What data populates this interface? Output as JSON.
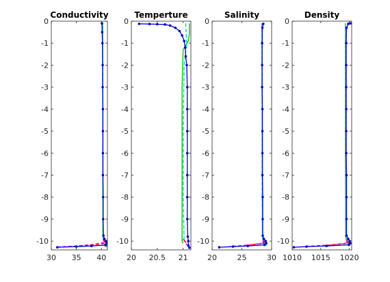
{
  "chart_data": [
    {
      "type": "line",
      "title": "Conductivity",
      "xlim": [
        30,
        41.2
      ],
      "ylim": [
        -10.4,
        0
      ],
      "xticks": [
        30,
        35,
        40
      ],
      "xtick_labels": [
        "30",
        "35",
        "40"
      ],
      "yticks": [
        0,
        -1,
        -2,
        -3,
        -4,
        -5,
        -6,
        -7,
        -8,
        -9,
        -10
      ],
      "ytick_labels": [
        "0",
        "-1",
        "-2",
        "-3",
        "-4",
        "-5",
        "-6",
        "-7",
        "-8",
        "-9",
        "-10"
      ],
      "grid": false,
      "series": [
        {
          "color": "#00cc00",
          "style": "solid",
          "markers": false,
          "points": [
            [
              40.25,
              -0.05
            ],
            [
              40.25,
              -2
            ],
            [
              40.3,
              -5
            ],
            [
              40.3,
              -9.8
            ],
            [
              40.4,
              -9.9
            ],
            [
              41.0,
              -10.0
            ],
            [
              41.1,
              -10.2
            ],
            [
              40.9,
              -10.28
            ]
          ]
        },
        {
          "color": "#00cccc",
          "style": "dashed",
          "markers": false,
          "points": [
            [
              40.2,
              -0.1
            ],
            [
              40.25,
              -3
            ],
            [
              40.3,
              -7
            ],
            [
              40.35,
              -9.85
            ],
            [
              40.7,
              -10.0
            ],
            [
              41.0,
              -10.1
            ],
            [
              40.6,
              -10.22
            ]
          ]
        },
        {
          "color": "#ff00ff",
          "style": "dashed",
          "markers": false,
          "points": [
            [
              40.3,
              -9.9
            ],
            [
              40.8,
              -10.05
            ],
            [
              38.5,
              -10.15
            ],
            [
              35.0,
              -10.22
            ],
            [
              31.5,
              -10.26
            ]
          ]
        },
        {
          "color": "#ff0000",
          "style": "dashed",
          "markers": false,
          "points": [
            [
              40.35,
              -9.95
            ],
            [
              40.9,
              -10.1
            ],
            [
              38.0,
              -10.18
            ],
            [
              34.0,
              -10.24
            ]
          ]
        },
        {
          "color": "#0000cc",
          "style": "solid",
          "markers": true,
          "points": [
            [
              40.1,
              -0.1
            ],
            [
              40.15,
              -0.5
            ],
            [
              40.2,
              -1
            ],
            [
              40.25,
              -2
            ],
            [
              40.25,
              -3
            ],
            [
              40.3,
              -4
            ],
            [
              40.3,
              -5
            ],
            [
              40.3,
              -6
            ],
            [
              40.3,
              -7
            ],
            [
              40.35,
              -8
            ],
            [
              40.35,
              -9
            ],
            [
              40.4,
              -9.75
            ],
            [
              40.6,
              -9.9
            ],
            [
              40.95,
              -10.0
            ],
            [
              41.05,
              -10.1
            ],
            [
              40.8,
              -10.18
            ],
            [
              38.0,
              -10.22
            ],
            [
              35.0,
              -10.25
            ],
            [
              31.2,
              -10.28
            ]
          ]
        }
      ]
    },
    {
      "type": "line",
      "title": "Temperture",
      "xlim": [
        20,
        21.15
      ],
      "ylim": [
        -10.4,
        0
      ],
      "xticks": [
        20,
        20.5,
        21
      ],
      "xtick_labels": [
        "20",
        "20.5",
        "21"
      ],
      "yticks": [
        0,
        -1,
        -2,
        -3,
        -4,
        -5,
        -6,
        -7,
        -8,
        -9,
        -10
      ],
      "ytick_labels": [
        "0",
        "-1",
        "-2",
        "-3",
        "-4",
        "-5",
        "-6",
        "-7",
        "-8",
        "-9",
        "-10"
      ],
      "grid": false,
      "series": [
        {
          "color": "#00cc00",
          "style": "solid",
          "markers": false,
          "points": [
            [
              21.12,
              -0.1
            ],
            [
              21.12,
              -0.6
            ],
            [
              21.1,
              -0.9
            ],
            [
              21.0,
              -1.3
            ],
            [
              20.98,
              -3
            ],
            [
              20.98,
              -6
            ],
            [
              20.98,
              -9
            ],
            [
              20.98,
              -10.0
            ],
            [
              21.0,
              -10.1
            ]
          ]
        },
        {
          "color": "#00cccc",
          "style": "dashed",
          "markers": false,
          "points": [
            [
              21.05,
              -0.1
            ],
            [
              21.07,
              -1
            ],
            [
              21.02,
              -2
            ],
            [
              21.0,
              -5
            ],
            [
              21.0,
              -8
            ],
            [
              21.02,
              -10.0
            ]
          ]
        },
        {
          "color": "#ff00ff",
          "style": "dashed",
          "markers": false,
          "points": [
            [
              21.0,
              -9.9
            ],
            [
              21.05,
              -10.1
            ],
            [
              21.1,
              -10.25
            ]
          ]
        },
        {
          "color": "#ff0000",
          "style": "dashed",
          "markers": false,
          "points": [
            [
              21.02,
              -9.95
            ],
            [
              21.08,
              -10.15
            ]
          ]
        },
        {
          "color": "#0000cc",
          "style": "solid",
          "markers": true,
          "points": [
            [
              20.15,
              -0.12
            ],
            [
              20.35,
              -0.13
            ],
            [
              20.5,
              -0.14
            ],
            [
              20.65,
              -0.15
            ],
            [
              20.75,
              -0.2
            ],
            [
              20.85,
              -0.3
            ],
            [
              20.93,
              -0.45
            ],
            [
              20.98,
              -0.65
            ],
            [
              21.02,
              -0.9
            ],
            [
              21.04,
              -1.2
            ],
            [
              21.05,
              -1.6
            ],
            [
              21.07,
              -2
            ],
            [
              21.08,
              -3
            ],
            [
              21.08,
              -4
            ],
            [
              21.08,
              -5
            ],
            [
              21.08,
              -6
            ],
            [
              21.08,
              -7
            ],
            [
              21.08,
              -8
            ],
            [
              21.08,
              -9
            ],
            [
              21.09,
              -9.8
            ],
            [
              21.1,
              -10.0
            ],
            [
              21.1,
              -10.2
            ],
            [
              21.12,
              -10.3
            ]
          ]
        }
      ]
    },
    {
      "type": "line",
      "title": "Salinity",
      "xlim": [
        20,
        30
      ],
      "ylim": [
        -10.4,
        0
      ],
      "xticks": [
        20,
        25,
        30
      ],
      "xtick_labels": [
        "20",
        "25",
        "30"
      ],
      "yticks": [
        0,
        -1,
        -2,
        -3,
        -4,
        -5,
        -6,
        -7,
        -8,
        -9,
        -10
      ],
      "ytick_labels": [
        "0",
        "-1",
        "-2",
        "-3",
        "-4",
        "-5",
        "-6",
        "-7",
        "-8",
        "-9",
        "-10"
      ],
      "grid": false,
      "series": [
        {
          "color": "#00cc00",
          "style": "solid",
          "markers": false,
          "points": [
            [
              28.4,
              -0.1
            ],
            [
              28.4,
              -3
            ],
            [
              28.45,
              -6
            ],
            [
              28.45,
              -9.8
            ],
            [
              28.7,
              -10.0
            ],
            [
              29.0,
              -10.1
            ],
            [
              29.1,
              -10.2
            ]
          ]
        },
        {
          "color": "#00cccc",
          "style": "dashed",
          "markers": false,
          "points": [
            [
              28.35,
              -0.1
            ],
            [
              28.4,
              -4
            ],
            [
              28.4,
              -8
            ],
            [
              28.5,
              -9.9
            ],
            [
              28.9,
              -10.1
            ]
          ]
        },
        {
          "color": "#ff00ff",
          "style": "dashed",
          "markers": false,
          "points": [
            [
              28.5,
              -9.95
            ],
            [
              28.9,
              -10.08
            ],
            [
              26.0,
              -10.18
            ],
            [
              23.0,
              -10.24
            ]
          ]
        },
        {
          "color": "#ff0000",
          "style": "dashed",
          "markers": false,
          "points": [
            [
              28.5,
              -10.0
            ],
            [
              28.7,
              -10.1
            ],
            [
              25.5,
              -10.2
            ]
          ]
        },
        {
          "color": "#0000cc",
          "style": "solid",
          "markers": true,
          "points": [
            [
              28.6,
              -0.12
            ],
            [
              28.45,
              -0.3
            ],
            [
              28.4,
              -1
            ],
            [
              28.4,
              -2
            ],
            [
              28.4,
              -3
            ],
            [
              28.45,
              -4
            ],
            [
              28.45,
              -5
            ],
            [
              28.45,
              -6
            ],
            [
              28.45,
              -7
            ],
            [
              28.5,
              -8
            ],
            [
              28.5,
              -9
            ],
            [
              28.5,
              -9.75
            ],
            [
              28.7,
              -9.9
            ],
            [
              29.0,
              -10.0
            ],
            [
              29.1,
              -10.1
            ],
            [
              28.8,
              -10.17
            ],
            [
              26.0,
              -10.22
            ],
            [
              23.5,
              -10.25
            ],
            [
              21.2,
              -10.28
            ]
          ]
        }
      ]
    },
    {
      "type": "line",
      "title": "Density",
      "xlim": [
        1010,
        1020.4
      ],
      "ylim": [
        -10.4,
        0
      ],
      "xticks": [
        1010,
        1015,
        1020
      ],
      "xtick_labels": [
        "1010",
        "1015",
        "1020"
      ],
      "yticks": [
        0,
        -1,
        -2,
        -3,
        -4,
        -5,
        -6,
        -7,
        -8,
        -9,
        -10
      ],
      "ytick_labels": [
        "0",
        "-1",
        "-2",
        "-3",
        "-4",
        "-5",
        "-6",
        "-7",
        "-8",
        "-9",
        "-10"
      ],
      "grid": false,
      "series": [
        {
          "color": "#00cc00",
          "style": "solid",
          "markers": false,
          "points": [
            [
              1019.3,
              -0.1
            ],
            [
              1019.3,
              -3
            ],
            [
              1019.3,
              -6
            ],
            [
              1019.35,
              -9.8
            ],
            [
              1019.7,
              -10.0
            ],
            [
              1020.0,
              -10.1
            ],
            [
              1020.1,
              -10.2
            ]
          ]
        },
        {
          "color": "#00cccc",
          "style": "dashed",
          "markers": false,
          "points": [
            [
              1019.3,
              -0.2
            ],
            [
              1019.35,
              -4
            ],
            [
              1019.35,
              -8
            ],
            [
              1019.4,
              -9.9
            ],
            [
              1019.8,
              -10.1
            ]
          ]
        },
        {
          "color": "#ff00ff",
          "style": "dashed",
          "markers": false,
          "points": [
            [
              1019.4,
              -9.95
            ],
            [
              1019.9,
              -10.08
            ],
            [
              1016.5,
              -10.18
            ],
            [
              1012.0,
              -10.24
            ]
          ]
        },
        {
          "color": "#ff0000",
          "style": "dashed",
          "markers": false,
          "points": [
            [
              1019.45,
              -10.0
            ],
            [
              1019.8,
              -10.1
            ],
            [
              1015.5,
              -10.2
            ]
          ]
        },
        {
          "color": "#0000cc",
          "style": "solid",
          "markers": true,
          "points": [
            [
              1020.2,
              -0.1
            ],
            [
              1019.8,
              -0.12
            ],
            [
              1019.5,
              -0.3
            ],
            [
              1019.45,
              -1
            ],
            [
              1019.45,
              -2
            ],
            [
              1019.45,
              -3
            ],
            [
              1019.45,
              -4
            ],
            [
              1019.45,
              -5
            ],
            [
              1019.45,
              -6
            ],
            [
              1019.5,
              -7
            ],
            [
              1019.5,
              -8
            ],
            [
              1019.5,
              -9
            ],
            [
              1019.5,
              -9.75
            ],
            [
              1019.8,
              -9.9
            ],
            [
              1020.05,
              -10.0
            ],
            [
              1020.15,
              -10.1
            ],
            [
              1019.9,
              -10.17
            ],
            [
              1016.0,
              -10.22
            ],
            [
              1012.5,
              -10.25
            ],
            [
              1010.3,
              -10.28
            ]
          ]
        }
      ]
    }
  ]
}
